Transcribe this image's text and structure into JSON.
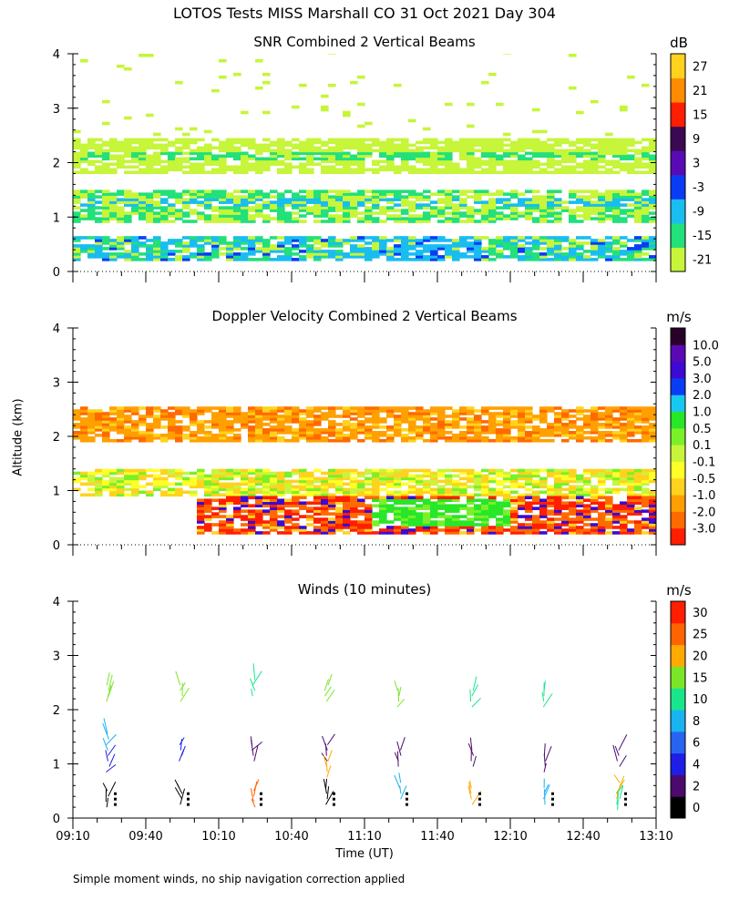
{
  "title": "LOTOS Tests MISS Marshall CO  31 Oct 2021 Day 304",
  "footnote": "Simple moment winds, no ship navigation correction applied",
  "chart_data": [
    {
      "type": "heatmap",
      "title": "SNR Combined 2 Vertical Beams",
      "xlabel": "Time (UT)",
      "ylabel": "Altitude (km)",
      "xlim": [
        "09:10",
        "13:10"
      ],
      "ylim": [
        0,
        4
      ],
      "yticks": [
        "0",
        "1",
        "2",
        "3",
        "4"
      ],
      "colorbar_unit": "dB",
      "colorbar_labels": [
        "-21",
        "-15",
        "-9",
        "-3",
        "3",
        "9",
        "15",
        "21",
        "27"
      ],
      "colorbar_colors": [
        "#c6f53a",
        "#22e07a",
        "#19bdf0",
        "#0a3cf5",
        "#5a0ab4",
        "#3b0852",
        "#ff1e00",
        "#ff8c00",
        "#ffd21e"
      ],
      "layers": [
        {
          "name": "surface layer",
          "alt_km": [
            0.2,
            0.65
          ],
          "snr_db": [
            -21,
            -9,
            -3
          ]
        },
        {
          "name": "mid layer",
          "alt_km": [
            0.9,
            1.5
          ],
          "snr_db": [
            -21,
            -15,
            -9
          ]
        },
        {
          "name": "upper layer",
          "alt_km": [
            1.8,
            2.4
          ],
          "snr_db": [
            -21,
            -15
          ]
        },
        {
          "name": "sparse echoes",
          "alt_km": [
            2.5,
            4.0
          ],
          "snr_db": [
            -21
          ]
        }
      ]
    },
    {
      "type": "heatmap",
      "title": "Doppler Velocity Combined 2 Vertical Beams",
      "xlabel": "Time (UT)",
      "ylabel": "Altitude (km)",
      "xlim": [
        "09:10",
        "13:10"
      ],
      "ylim": [
        0,
        4
      ],
      "yticks": [
        "0",
        "1",
        "2",
        "3",
        "4"
      ],
      "colorbar_unit": "m/s",
      "colorbar_labels": [
        "-3.0",
        "-2.0",
        "-1.0",
        "-0.5",
        "-0.1",
        "0.1",
        "0.5",
        "1.0",
        "2.0",
        "3.0",
        "5.0",
        "10.0"
      ],
      "colorbar_colors": [
        "#ff1e00",
        "#ff6a00",
        "#ff9f00",
        "#ffd21e",
        "#ffff28",
        "#c8f53c",
        "#7af028",
        "#28e628",
        "#19c8f0",
        "#0a3cf5",
        "#3c0ad2",
        "#5a0ab4",
        "#280028"
      ],
      "layers": [
        {
          "name": "upper layer",
          "alt_km": [
            1.9,
            2.5
          ],
          "velocity_ms": [
            -2.0,
            -1.0
          ]
        },
        {
          "name": "mid layer",
          "alt_km": [
            0.9,
            1.4
          ],
          "velocity_ms": [
            -0.5,
            0.1
          ]
        },
        {
          "name": "lower layer",
          "alt_km": [
            0.2,
            0.9
          ],
          "velocity_ms": [
            -3.0,
            1.0
          ]
        }
      ]
    },
    {
      "type": "scatter",
      "title": "Winds (10 minutes)",
      "xlabel": "Time (UT)",
      "ylabel": "Altitude (km)",
      "xlim": [
        "09:10",
        "13:10"
      ],
      "ylim": [
        0,
        4
      ],
      "xticks": [
        "09:10",
        "09:40",
        "10:10",
        "10:40",
        "11:10",
        "11:40",
        "12:10",
        "12:40",
        "13:10"
      ],
      "yticks": [
        "0",
        "1",
        "2",
        "3",
        "4"
      ],
      "colorbar_unit": "m/s",
      "colorbar_labels": [
        "0",
        "2",
        "4",
        "6",
        "8",
        "10",
        "15",
        "20",
        "25",
        "30"
      ],
      "colorbar_colors": [
        "#000000",
        "#4b0a6e",
        "#1e1ee6",
        "#2864f0",
        "#19b4f0",
        "#19e68c",
        "#7ae628",
        "#ffaa00",
        "#ff6400",
        "#ff1e00"
      ],
      "profile_times": [
        "09:25",
        "09:55",
        "10:25",
        "10:55",
        "11:25",
        "11:55",
        "12:25",
        "12:55"
      ],
      "profiles": [
        {
          "time": "09:25",
          "barbs": [
            {
              "alt_km": 2.3,
              "speed_ms": 15
            },
            {
              "alt_km": 1.4,
              "speed_ms": 8
            },
            {
              "alt_km": 1.0,
              "speed_ms": 4
            },
            {
              "alt_km": 0.35,
              "speed_ms": 0
            }
          ]
        },
        {
          "time": "09:55",
          "barbs": [
            {
              "alt_km": 2.3,
              "speed_ms": 15
            },
            {
              "alt_km": 1.2,
              "speed_ms": 4
            },
            {
              "alt_km": 0.4,
              "speed_ms": 0
            }
          ]
        },
        {
          "time": "10:25",
          "barbs": [
            {
              "alt_km": 2.4,
              "speed_ms": 10
            },
            {
              "alt_km": 1.2,
              "speed_ms": 2
            },
            {
              "alt_km": 0.35,
              "speed_ms": 25
            }
          ]
        },
        {
          "time": "10:55",
          "barbs": [
            {
              "alt_km": 2.3,
              "speed_ms": 15
            },
            {
              "alt_km": 1.2,
              "speed_ms": 2
            },
            {
              "alt_km": 0.9,
              "speed_ms": 20
            },
            {
              "alt_km": 0.4,
              "speed_ms": 0
            }
          ]
        },
        {
          "time": "11:25",
          "barbs": [
            {
              "alt_km": 2.2,
              "speed_ms": 15
            },
            {
              "alt_km": 1.1,
              "speed_ms": 2
            },
            {
              "alt_km": 0.5,
              "speed_ms": 8
            }
          ]
        },
        {
          "time": "11:55",
          "barbs": [
            {
              "alt_km": 2.2,
              "speed_ms": 10
            },
            {
              "alt_km": 1.1,
              "speed_ms": 2
            },
            {
              "alt_km": 0.4,
              "speed_ms": 20
            }
          ]
        },
        {
          "time": "12:25",
          "barbs": [
            {
              "alt_km": 2.2,
              "speed_ms": 10
            },
            {
              "alt_km": 1.0,
              "speed_ms": 2
            },
            {
              "alt_km": 0.4,
              "speed_ms": 8
            }
          ]
        },
        {
          "time": "12:55",
          "barbs": [
            {
              "alt_km": 1.1,
              "speed_ms": 2
            },
            {
              "alt_km": 0.5,
              "speed_ms": 20
            },
            {
              "alt_km": 0.3,
              "speed_ms": 10
            }
          ]
        }
      ]
    }
  ]
}
